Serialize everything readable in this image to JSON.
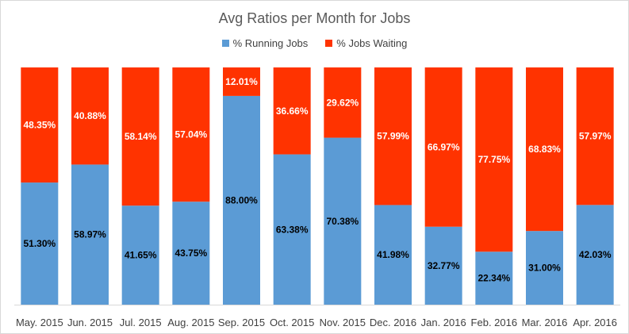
{
  "chart_data": {
    "type": "bar",
    "stacked": true,
    "percent_stacked": true,
    "title": "Avg Ratios per Month for Jobs",
    "xlabel": "",
    "ylabel": "",
    "ylim": [
      0,
      100
    ],
    "grid": false,
    "legend_position": "top",
    "categories": [
      "May. 2015",
      "Jun. 2015",
      "Jul. 2015",
      "Aug. 2015",
      "Sep. 2015",
      "Oct. 2015",
      "Nov. 2015",
      "Dec. 2016",
      "Jan. 2016",
      "Feb. 2016",
      "Mar. 2016",
      "Apr. 2016"
    ],
    "series": [
      {
        "name": "% Running Jobs",
        "color": "#5b9bd5",
        "values": [
          51.3,
          58.97,
          41.65,
          43.75,
          88.0,
          63.38,
          70.38,
          41.98,
          32.77,
          22.34,
          31.0,
          42.03
        ],
        "labels": [
          "51.30%",
          "58.97%",
          "41.65%",
          "43.75%",
          "88.00%",
          "63.38%",
          "70.38%",
          "41.98%",
          "32.77%",
          "22.34%",
          "31.00%",
          "42.03%"
        ]
      },
      {
        "name": "% Jobs Waiting",
        "color": "#ff3300",
        "values": [
          48.35,
          40.88,
          58.14,
          57.04,
          12.01,
          36.66,
          29.62,
          57.99,
          66.97,
          77.75,
          68.83,
          57.97
        ],
        "labels": [
          "48.35%",
          "40.88%",
          "58.14%",
          "57.04%",
          "12.01%",
          "36.66%",
          "29.62%",
          "57.99%",
          "66.97%",
          "77.75%",
          "68.83%",
          "57.97%"
        ]
      }
    ]
  }
}
